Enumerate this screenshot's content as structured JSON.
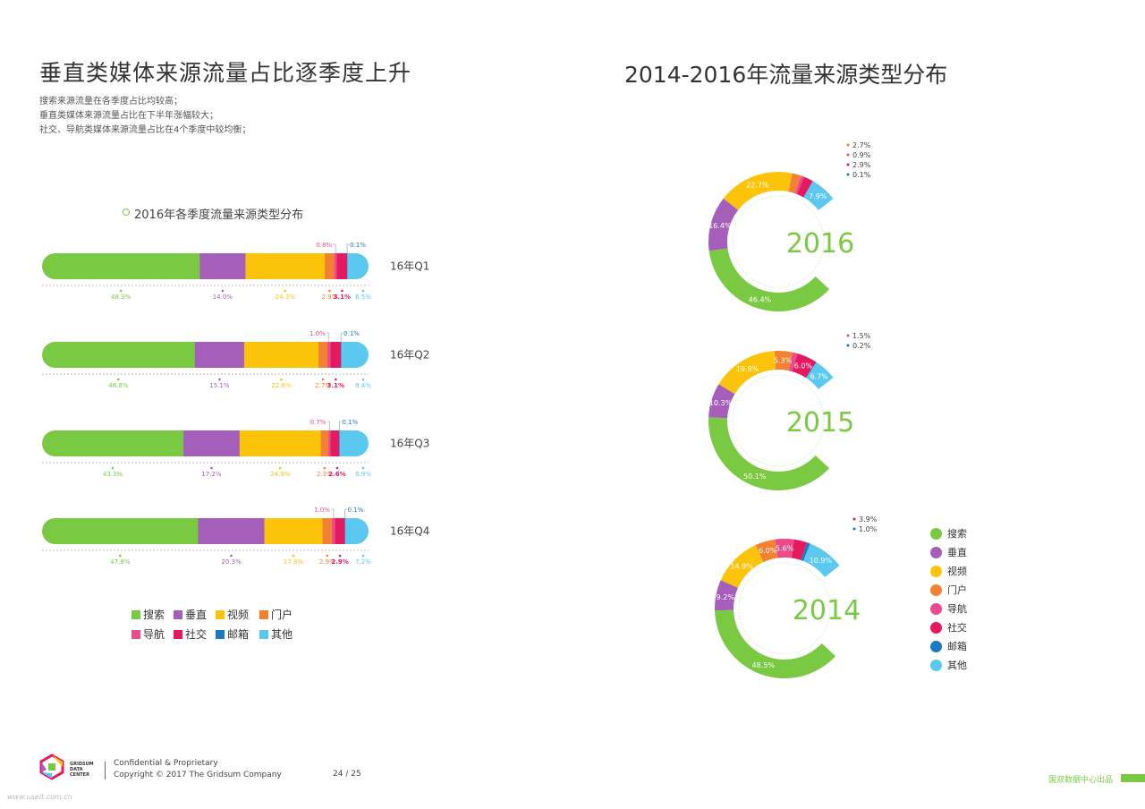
{
  "left": {
    "title": "垂直类媒体来源流量占比逐季度上升",
    "notes": [
      "搜索来源流量在各季度占比均较高；",
      "垂直类媒体来源流量占比在下半年涨幅较大；",
      "社交、导航类媒体来源流量占比在4个季度中较均衡；"
    ]
  },
  "right": {
    "title": "2014-2016年流量来源类型分布"
  },
  "colors": {
    "search": "#7ac943",
    "vertical": "#a55fbb",
    "video": "#fcc30b",
    "portal": "#f28232",
    "nav": "#ea4b8b",
    "social": "#e6185f",
    "mail": "#1b7ac2",
    "other": "#5ac8ef"
  },
  "categories": [
    "搜索",
    "垂直",
    "视频",
    "门户",
    "导航",
    "社交",
    "邮箱",
    "其他"
  ],
  "category_keys": [
    "search",
    "vertical",
    "video",
    "portal",
    "nav",
    "social",
    "mail",
    "other"
  ],
  "chart_data": [
    {
      "type": "bar",
      "orientation": "horizontal-stacked",
      "title": "2016年各季度流量来源类型分布",
      "categories": [
        "16年Q1",
        "16年Q2",
        "16年Q3",
        "16年Q4"
      ],
      "series": [
        {
          "name": "搜索",
          "values": [
            48.3,
            46.8,
            43.3,
            47.8
          ],
          "labels": [
            "48.3%",
            "46.8%",
            "43.3%",
            "47.8%"
          ]
        },
        {
          "name": "垂直",
          "values": [
            14.0,
            15.1,
            17.2,
            20.3
          ],
          "labels": [
            "14.0%",
            "15.1%",
            "17.2%",
            "20.3%"
          ]
        },
        {
          "name": "视频",
          "values": [
            24.3,
            22.8,
            24.9,
            17.8
          ],
          "labels": [
            "24.3%",
            "22.8%",
            "24.9%",
            "17.8%"
          ]
        },
        {
          "name": "门户",
          "values": [
            2.9,
            2.7,
            2.3,
            2.9
          ],
          "labels": [
            "2.9%",
            "2.7%",
            "2.3%",
            "2.9%"
          ]
        },
        {
          "name": "导航",
          "values": [
            0.8,
            1.0,
            0.7,
            1.0
          ],
          "labels": [
            "0.8%",
            "1.0%",
            "0.7%",
            "1.0%"
          ]
        },
        {
          "name": "社交",
          "values": [
            3.1,
            3.1,
            2.6,
            2.9
          ],
          "labels": [
            "3.1%",
            "3.1%",
            "2.6%",
            "2.9%"
          ]
        },
        {
          "name": "邮箱",
          "values": [
            0.1,
            0.1,
            0.1,
            0.1
          ],
          "labels": [
            "0.1%",
            "0.1%",
            "0.1%",
            "0.1%"
          ]
        },
        {
          "name": "其他",
          "values": [
            6.5,
            8.4,
            8.9,
            7.2
          ],
          "labels": [
            "6.5%",
            "8.4%",
            "8.9%",
            "7.2%"
          ]
        }
      ],
      "legend": "bottom"
    },
    {
      "type": "pie",
      "title": "2016",
      "labels": [
        "搜索",
        "垂直",
        "视频",
        "门户",
        "导航",
        "社交",
        "邮箱",
        "其他"
      ],
      "values": [
        46.4,
        16.4,
        22.7,
        2.7,
        0.9,
        2.9,
        0.1,
        7.9
      ],
      "value_labels": [
        "46.4%",
        "16.4%",
        "22.7%",
        "2.7%",
        "0.9%",
        "2.9%",
        "0.1%",
        "7.9%"
      ]
    },
    {
      "type": "pie",
      "title": "2015",
      "labels": [
        "搜索",
        "垂直",
        "视频",
        "门户",
        "导航",
        "社交",
        "邮箱",
        "其他"
      ],
      "values": [
        50.1,
        10.3,
        19.9,
        5.3,
        1.5,
        6.0,
        0.2,
        6.7
      ],
      "value_labels": [
        "50.1%",
        "10.3%",
        "19.9%",
        "5.3%",
        "1.5%",
        "6.0%",
        "0.2%",
        "6.7%"
      ]
    },
    {
      "type": "pie",
      "title": "2014",
      "labels": [
        "搜索",
        "垂直",
        "视频",
        "门户",
        "导航",
        "社交",
        "邮箱",
        "其他"
      ],
      "values": [
        48.5,
        9.2,
        14.9,
        6.0,
        5.6,
        3.9,
        1.0,
        10.9
      ],
      "value_labels": [
        "48.5%",
        "9.2%",
        "14.9%",
        "6.0%",
        "5.6%",
        "3.9%",
        "1.0%",
        "10.9%"
      ],
      "legend": "right"
    }
  ],
  "footer": {
    "brand": [
      "GRIDSUM",
      "DATA",
      "CENTER"
    ],
    "line1": "Confidential & Proprietary",
    "line2": "Copyright © 2017 The Gridsum Company",
    "page": "24 / 25",
    "right_text": "国双数据中心出品",
    "watermark": "www.useit.com.cn"
  }
}
